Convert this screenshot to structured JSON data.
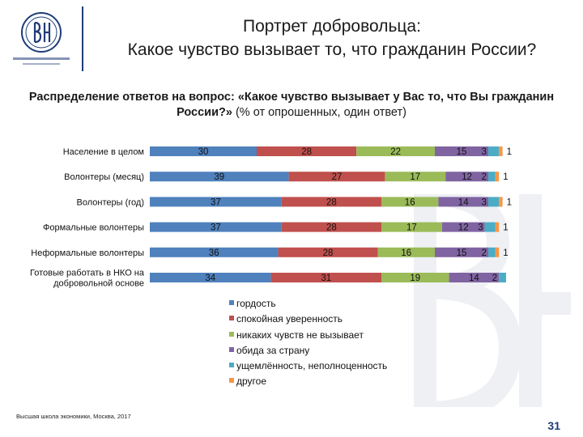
{
  "header": {
    "title_line1": "Портрет добровольца:",
    "title_line2": "Какое чувство вызывает то, что гражданин России?"
  },
  "question": {
    "bold_part": "Распределение ответов на вопрос: «Какое чувство вызывает у Вас то, что Вы гражданин России?»",
    "normal_part": " (% от опрошенных, один ответ)"
  },
  "footer": {
    "text": "Высшая школа экономики, Москва, 2017",
    "page": "31"
  },
  "colors": {
    "brand": "#1f3c78",
    "series": [
      "#4f81bd",
      "#c0504d",
      "#9bbb59",
      "#8064a2",
      "#4bacc6",
      "#f79646"
    ]
  },
  "chart_data": {
    "type": "bar",
    "orientation": "horizontal",
    "stacked": true,
    "categories": [
      "Население в целом",
      "Волонтеры (месяц)",
      "Волонтеры (год)",
      "Формальные волонтеры",
      "Неформальные волонтеры",
      "Готовые работать в НКО на добровольной основе"
    ],
    "category_lines": [
      [
        "Население в целом"
      ],
      [
        "Волонтеры (месяц)"
      ],
      [
        "Волонтеры (год)"
      ],
      [
        "Формальные волонтеры"
      ],
      [
        "Неформальные волонтеры"
      ],
      [
        "Готовые работать в НКО на",
        "добровольной основе"
      ]
    ],
    "series": [
      {
        "name": "гордость",
        "values": [
          30,
          39,
          37,
          37,
          36,
          34
        ]
      },
      {
        "name": "спокойная уверенность",
        "values": [
          28,
          27,
          28,
          28,
          28,
          31
        ]
      },
      {
        "name": "никаких чувств не вызывает",
        "values": [
          22,
          17,
          16,
          17,
          16,
          19
        ]
      },
      {
        "name": "обида за страну",
        "values": [
          15,
          12,
          14,
          12,
          15,
          14
        ]
      },
      {
        "name": "ущемлённость, неполноценность",
        "values": [
          3,
          2,
          3,
          3,
          2,
          2
        ]
      },
      {
        "name": "другое",
        "values": [
          1,
          1,
          1,
          1,
          1,
          0
        ]
      }
    ],
    "xlim": [
      0,
      100
    ],
    "legend_position": "bottom",
    "grid": false
  }
}
